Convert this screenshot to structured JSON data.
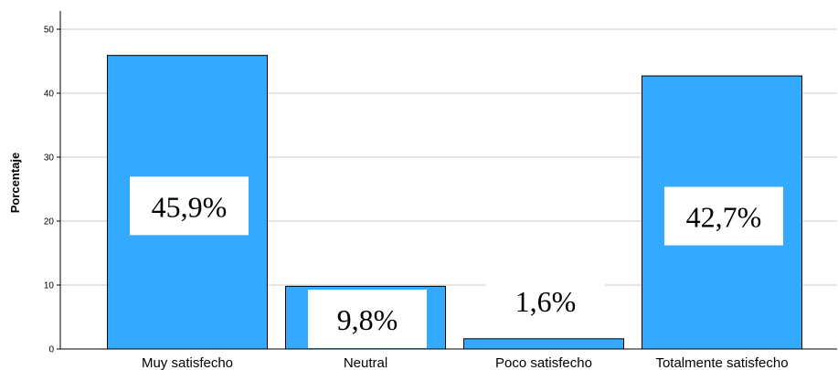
{
  "chart_data": {
    "type": "bar",
    "title": "",
    "xlabel": "",
    "ylabel": "Porcentaje",
    "categories": [
      "Muy satisfecho",
      "Neutral",
      "Poco satisfecho",
      "Totalmente satisfecho"
    ],
    "values": [
      45.9,
      9.8,
      1.6,
      42.7
    ],
    "data_labels": [
      "45,9%",
      "9,8%",
      "1,6%",
      "42,7%"
    ],
    "ylim": [
      0,
      50
    ],
    "yticks": [
      0,
      10,
      20,
      30,
      40,
      50
    ],
    "grid": true,
    "legend": "none",
    "colors": {
      "bar": "#33AAFF",
      "bar_stroke": "#000000",
      "grid": "#c8c8c8",
      "label_box": "#ffffff"
    }
  }
}
